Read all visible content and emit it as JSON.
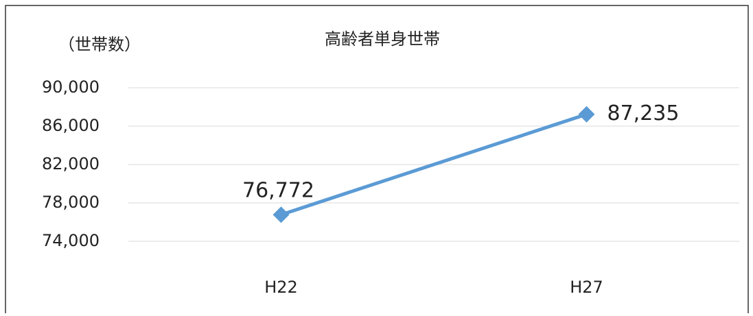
{
  "chart_data": {
    "type": "line",
    "title": "高齢者単身世帯",
    "y_label": "（世帯数）",
    "categories": [
      "H22",
      "H27"
    ],
    "series": [
      {
        "name": "高齢者単身世帯",
        "color": "#5b9bd5",
        "values": [
          76772,
          87235
        ],
        "value_labels": [
          "76,772",
          "87,235"
        ]
      }
    ],
    "ylim": [
      74000,
      90000
    ],
    "yticks": [
      {
        "value": 74000,
        "label": "74,000"
      },
      {
        "value": 78000,
        "label": "78,000"
      },
      {
        "value": 82000,
        "label": "82,000"
      },
      {
        "value": 86000,
        "label": "86,000"
      },
      {
        "value": 90000,
        "label": "90,000"
      }
    ],
    "grid": true,
    "legend": false
  }
}
